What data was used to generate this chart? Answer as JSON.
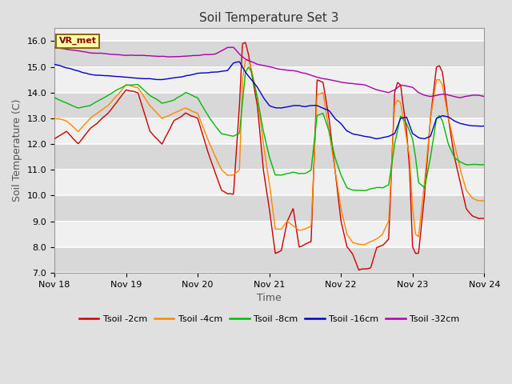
{
  "title": "Soil Temperature Set 3",
  "xlabel": "Time",
  "ylabel": "Soil Temperature (C)",
  "ylim": [
    7.0,
    16.5
  ],
  "yticks": [
    7.0,
    8.0,
    9.0,
    10.0,
    11.0,
    12.0,
    13.0,
    14.0,
    15.0,
    16.0
  ],
  "xlim": [
    0,
    144
  ],
  "xtick_positions": [
    0,
    24,
    48,
    72,
    96,
    120,
    144
  ],
  "xtick_labels": [
    "Nov 18",
    "Nov 19",
    "Nov 20",
    "Nov 21",
    "Nov 22",
    "Nov 23",
    "Nov 24"
  ],
  "legend_labels": [
    "Tsoil -2cm",
    "Tsoil -4cm",
    "Tsoil -8cm",
    "Tsoil -16cm",
    "Tsoil -32cm"
  ],
  "colors": {
    "tsoil2": "#cc0000",
    "tsoil4": "#ff8800",
    "tsoil8": "#00bb00",
    "tsoil16": "#0000cc",
    "tsoil32": "#aa00aa"
  },
  "annotation_text": "VR_met",
  "bg_color": "#e0e0e0",
  "plot_bg": "#f0f0f0",
  "band_color": "#d8d8d8",
  "title_fontsize": 11,
  "axis_label_fontsize": 9,
  "tick_fontsize": 8
}
